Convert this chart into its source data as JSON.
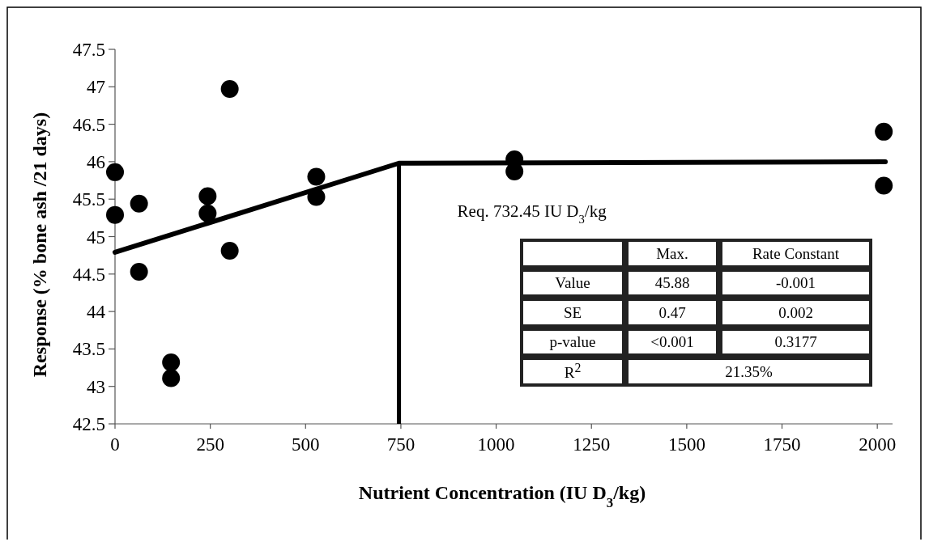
{
  "chart_data": {
    "type": "scatter",
    "xlabel": "Nutrient Concentration (IU D$_{3}$/kg)",
    "ylabel": "Response (% bone ash /21 days)",
    "xlim": [
      0,
      2040
    ],
    "xticks": [
      0,
      250,
      500,
      750,
      1000,
      1250,
      1500,
      1750,
      2000
    ],
    "ylim": [
      42.5,
      47.5
    ],
    "yticks": [
      42.5,
      43,
      43.5,
      44,
      44.5,
      45,
      45.5,
      46,
      46.5,
      47,
      47.5
    ],
    "grid": false,
    "marker": "circle",
    "series": [
      {
        "color": "#000000",
        "x": [
          0,
          0,
          63,
          63,
          147,
          147,
          243,
          243,
          301,
          301,
          528,
          528,
          1048,
          1048,
          2017,
          2017
        ],
        "values": [
          45.86,
          45.29,
          45.44,
          44.53,
          43.32,
          43.11,
          45.54,
          45.31,
          46.97,
          44.81,
          45.8,
          45.53,
          46.03,
          45.87,
          46.4,
          45.68
        ]
      },
      {
        "type": "line",
        "color": "#000000",
        "marker": "none",
        "line_style": "solid",
        "x": [
          0,
          745,
          2021
        ],
        "values": [
          44.79,
          45.98,
          46.0
        ]
      }
    ],
    "ref_lines": [
      {
        "axis": "x",
        "value": 745,
        "label": "Req. 732.45 IU D$_{3}$/kg",
        "color": "#000000"
      }
    ],
    "annotations": [
      "Max.",
      "Rate Constant",
      "Value",
      "45.88",
      "-0.001",
      "SE",
      "0.47",
      "0.002",
      "p-value",
      "<0.001",
      "0.3177",
      "R$^{2}$",
      "21.35%"
    ]
  }
}
